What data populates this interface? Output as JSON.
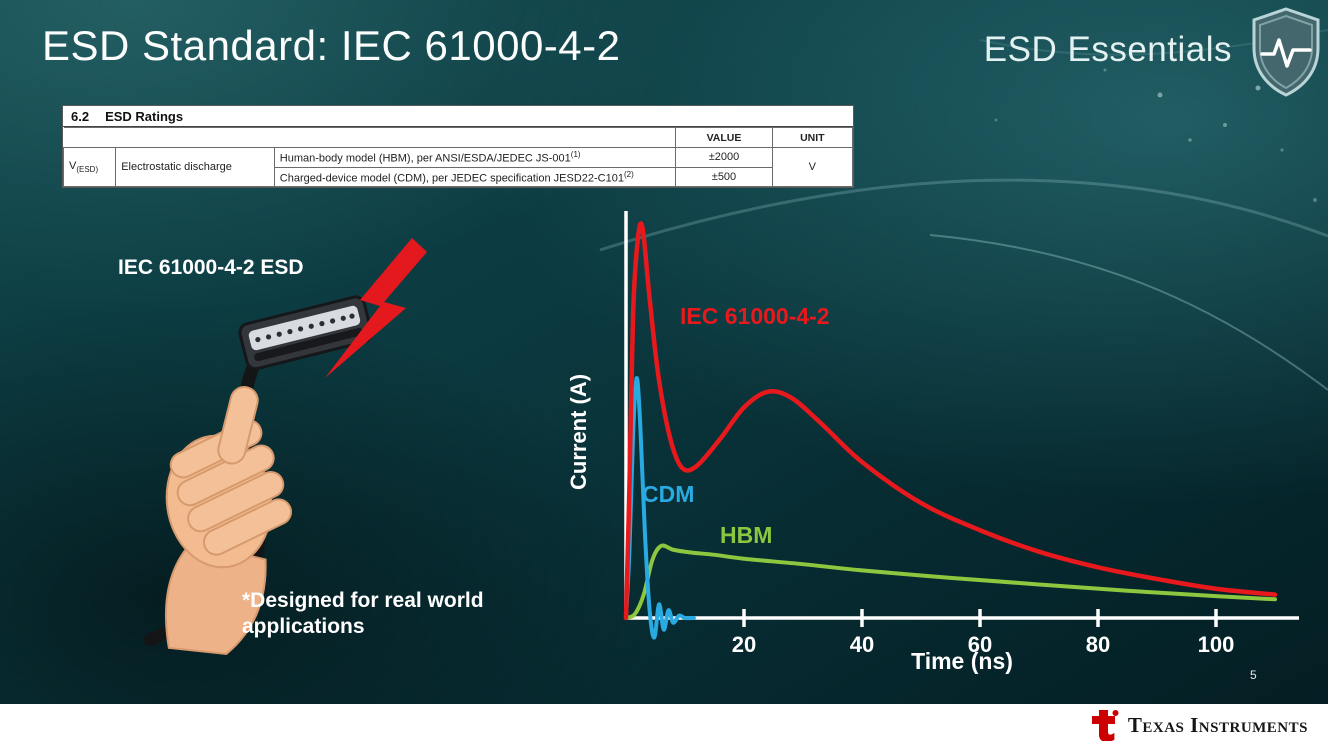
{
  "slide": {
    "title": "ESD Standard: IEC 61000-4-2",
    "brand_series": "ESD Essentials",
    "page_number": "5"
  },
  "ratings_table": {
    "section_number": "6.2",
    "section_title": "ESD Ratings",
    "headers": {
      "value": "VALUE",
      "unit": "UNIT"
    },
    "symbol": "V",
    "symbol_sub": "(ESD)",
    "parameter": "Electrostatic discharge",
    "rows": [
      {
        "description": "Human-body model (HBM), per ANSI/ESDA/JEDEC JS-001",
        "footnote": "(1)",
        "value": "±2000"
      },
      {
        "description": "Charged-device model (CDM), per JEDEC specification JESD22-C101",
        "footnote": "(2)",
        "value": "±500"
      }
    ],
    "unit": "V"
  },
  "illustration": {
    "caption": "IEC 61000-4-2 ESD",
    "note_line1": "*Designed for real world",
    "note_line2": "applications"
  },
  "chart_data": {
    "type": "line",
    "title": "",
    "xlabel": "Time (ns)",
    "ylabel": "Current (A)",
    "xlim": [
      0,
      112
    ],
    "x_ticks": [
      20,
      40,
      60,
      80,
      100
    ],
    "y_axis_values_shown": false,
    "y_units": "relative amplitude (unlabeled axis)",
    "grid": false,
    "series": [
      {
        "name": "IEC 61000-4-2",
        "color": "#e8191c",
        "x": [
          0,
          0.6,
          1.2,
          2,
          2.8,
          4,
          5.5,
          7.5,
          9.5,
          12,
          16,
          20,
          24,
          28,
          33,
          40,
          50,
          60,
          70,
          80,
          90,
          100,
          110
        ],
        "y": [
          0,
          0.35,
          0.78,
          0.97,
          1.0,
          0.82,
          0.62,
          0.46,
          0.385,
          0.39,
          0.46,
          0.54,
          0.58,
          0.565,
          0.5,
          0.4,
          0.295,
          0.225,
          0.17,
          0.13,
          0.1,
          0.075,
          0.06
        ]
      },
      {
        "name": "CDM",
        "color": "#29abe2",
        "x": [
          0,
          0.6,
          1.2,
          1.8,
          2.4,
          3.2,
          4,
          4.8,
          5.6,
          6.4,
          7.2,
          8,
          9,
          10,
          11.5
        ],
        "y": [
          0,
          0.18,
          0.47,
          0.615,
          0.5,
          0.22,
          0.02,
          -0.05,
          0.035,
          -0.03,
          0.02,
          -0.012,
          0.006,
          0,
          0
        ]
      },
      {
        "name": "HBM",
        "color": "#8dc63f",
        "x": [
          0,
          1.5,
          3,
          4.5,
          6,
          8,
          11,
          15,
          20,
          30,
          40,
          55,
          70,
          85,
          100,
          110
        ],
        "y": [
          0,
          0.01,
          0.06,
          0.15,
          0.185,
          0.175,
          0.168,
          0.162,
          0.152,
          0.138,
          0.122,
          0.103,
          0.086,
          0.07,
          0.056,
          0.048
        ]
      }
    ]
  },
  "footer": {
    "brand": "Texas Instruments"
  }
}
